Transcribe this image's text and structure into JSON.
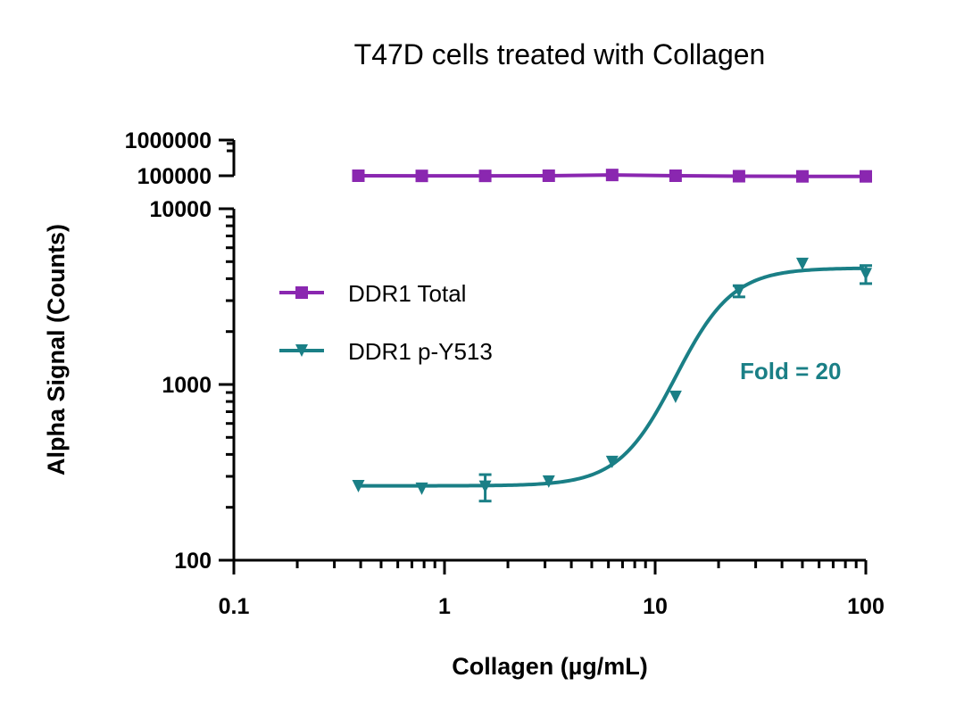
{
  "chart_data": {
    "type": "scatter",
    "title": "T47D cells treated with Collagen",
    "xlabel": "Collagen (µg/mL)",
    "ylabel": "Alpha Signal (Counts)",
    "x_scale": "log",
    "y_scale": "log",
    "y_axis_break": true,
    "xlim": [
      0.1,
      100
    ],
    "ylim_lower": [
      100,
      10000
    ],
    "ylim_upper": [
      100000,
      1000000
    ],
    "x_ticks": [
      "0.1",
      "1",
      "10",
      "100"
    ],
    "y_ticks_lower": [
      "100",
      "1000",
      "10000"
    ],
    "y_ticks_upper": [
      "100000",
      "1000000"
    ],
    "grid": false,
    "legend_position": "upper-left",
    "annotation": {
      "text": "Fold = 20",
      "color": "#1a7f86"
    },
    "series": [
      {
        "name": "DDR1 Total",
        "color": "#8a27b0",
        "marker": "square",
        "line": "connected",
        "x": [
          0.39,
          0.78,
          1.56,
          3.125,
          6.25,
          12.5,
          25,
          50,
          100
        ],
        "y": [
          100000,
          99000,
          99000,
          100000,
          105000,
          100000,
          97000,
          96000,
          96000
        ]
      },
      {
        "name": "DDR1 p-Y513",
        "color": "#1a7f86",
        "marker": "triangle-down",
        "line": "sigmoidal fit",
        "x": [
          0.39,
          0.78,
          1.56,
          3.125,
          6.25,
          12.5,
          25,
          50,
          100
        ],
        "y": [
          264,
          255,
          262,
          280,
          362,
          850,
          3400,
          4850,
          4250
        ],
        "y_err": [
          0,
          0,
          45,
          0,
          0,
          0,
          250,
          0,
          500
        ]
      }
    ]
  }
}
